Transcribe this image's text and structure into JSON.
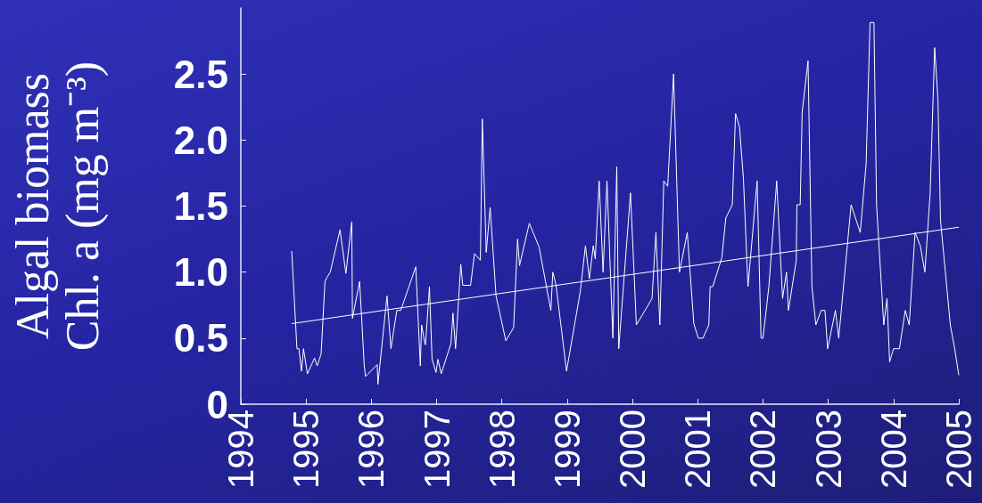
{
  "chart_data": {
    "type": "line",
    "ylabel": "Algal biomass\nChl. a (mg m⁻³)",
    "xlim": [
      1994,
      2005
    ],
    "xticks": [
      1994,
      1995,
      1996,
      1997,
      1998,
      1999,
      2000,
      2001,
      2002,
      2003,
      2004,
      2005
    ],
    "ylim": [
      0,
      3
    ],
    "yticks": [
      {
        "value": 0,
        "label": "0"
      },
      {
        "value": 0.5,
        "label": "0.5"
      },
      {
        "value": 1,
        "label": "1.0"
      },
      {
        "value": 1.5,
        "label": "1.5"
      },
      {
        "value": 2,
        "label": "2.0"
      },
      {
        "value": 2.5,
        "label": "2.5"
      }
    ],
    "grid": false,
    "marker": "none",
    "line_style": "solid",
    "series": [
      {
        "color": "#ffffff",
        "x": [
          1994.78,
          1994.86,
          1994.89,
          1994.93,
          1994.96,
          1995.02,
          1995.13,
          1995.17,
          1995.23,
          1995.29,
          1995.32,
          1995.37,
          1995.52,
          1995.61,
          1995.7,
          1995.71,
          1995.82,
          1995.89,
          1995.91,
          1996.09,
          1996.1,
          1996.24,
          1996.3,
          1996.39,
          1996.45,
          1996.68,
          1996.75,
          1996.77,
          1996.82,
          1996.83,
          1996.89,
          1996.93,
          1996.99,
          1997.02,
          1997.07,
          1997.22,
          1997.25,
          1997.29,
          1997.37,
          1997.4,
          1997.52,
          1997.58,
          1997.67,
          1997.7,
          1997.76,
          1997.82,
          1997.91,
          1998.06,
          1998.18,
          1998.24,
          1998.27,
          1998.42,
          1998.57,
          1998.75,
          1998.78,
          1998.83,
          1998.99,
          1999.2,
          1999.28,
          1999.34,
          1999.4,
          1999.43,
          1999.49,
          1999.55,
          1999.61,
          1999.7,
          1999.76,
          1999.79,
          1999.97,
          2000.06,
          2000.3,
          2000.36,
          2000.42,
          2000.48,
          2000.54,
          2000.63,
          2000.72,
          2000.84,
          2000.94,
          2001.01,
          2001.08,
          2001.17,
          2001.19,
          2001.23,
          2001.37,
          2001.43,
          2001.53,
          2001.58,
          2001.64,
          2001.7,
          2001.77,
          2001.91,
          2001.97,
          2002,
          2002.09,
          2002.21,
          2002.3,
          2002.36,
          2002.39,
          2002.51,
          2002.52,
          2002.57,
          2002.6,
          2002.69,
          2002.75,
          2002.81,
          2002.89,
          2002.95,
          2002.99,
          2003.11,
          2003.16,
          2003.35,
          2003.49,
          2003.58,
          2003.64,
          2003.7,
          2003.74,
          2003.85,
          2003.9,
          2003.94,
          2004,
          2004.09,
          2004.18,
          2004.24,
          2004.33,
          2004.41,
          2004.48,
          2004.56,
          2004.63,
          2004.68,
          2004.72,
          2004.87,
          2004.93,
          2005
        ],
        "values": [
          1.16,
          0.42,
          0.42,
          0.25,
          0.42,
          0.23,
          0.35,
          0.29,
          0.38,
          0.93,
          0.96,
          1.0,
          1.32,
          0.99,
          1.38,
          0.65,
          0.93,
          0.3,
          0.21,
          0.3,
          0.15,
          0.82,
          0.42,
          0.71,
          0.71,
          1.04,
          0.29,
          0.6,
          0.46,
          0.45,
          0.89,
          0.34,
          0.24,
          0.34,
          0.23,
          0.46,
          0.69,
          0.42,
          1.06,
          0.9,
          0.9,
          1.14,
          1.09,
          2.16,
          1.15,
          1.49,
          0.82,
          0.48,
          0.58,
          1.25,
          1.05,
          1.37,
          1.19,
          0.71,
          1.0,
          0.9,
          0.25,
          0.85,
          1.2,
          0.95,
          1.2,
          1.1,
          1.69,
          1.0,
          1.69,
          0.5,
          1.8,
          0.42,
          1.6,
          0.6,
          0.8,
          1.3,
          0.6,
          1.69,
          1.65,
          2.5,
          1.0,
          1.3,
          0.61,
          0.5,
          0.5,
          0.6,
          0.89,
          0.89,
          1.11,
          1.41,
          1.51,
          2.2,
          2.1,
          1.71,
          0.89,
          1.69,
          0.5,
          0.5,
          0.89,
          1.69,
          0.8,
          1.0,
          0.71,
          1.09,
          1.51,
          1.51,
          2.21,
          2.6,
          0.89,
          0.6,
          0.71,
          0.71,
          0.42,
          0.71,
          0.5,
          1.51,
          1.3,
          1.82,
          2.89,
          2.89,
          1.51,
          0.6,
          0.8,
          0.32,
          0.42,
          0.42,
          0.71,
          0.6,
          1.3,
          1.2,
          1.0,
          1.59,
          2.7,
          2.31,
          1.39,
          0.6,
          0.44,
          0.22
        ]
      },
      {
        "color": "#ffffff",
        "x": [
          1994.78,
          2005
        ],
        "values": [
          0.61,
          1.34
        ]
      }
    ]
  }
}
